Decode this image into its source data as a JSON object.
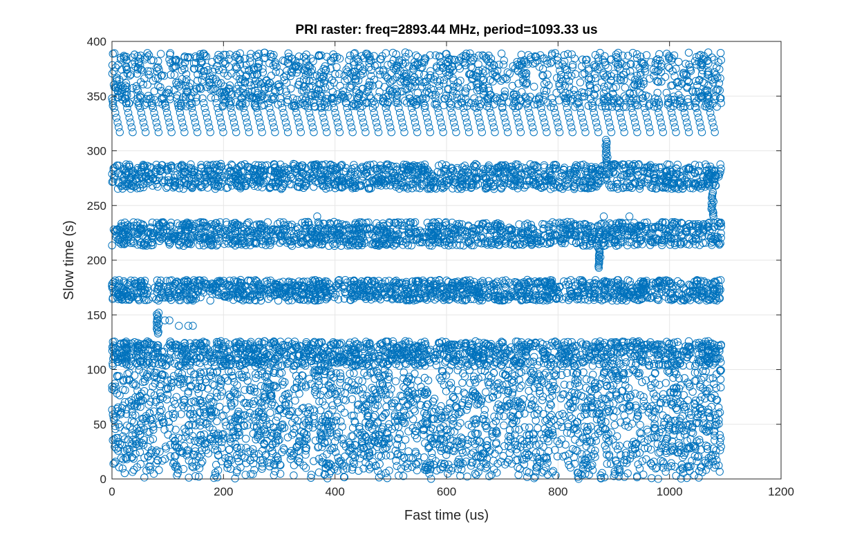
{
  "chart_data": {
    "type": "scatter",
    "title": "PRI raster: freq=2893.44 MHz, period=1093.33 us",
    "xlabel": "Fast time (us)",
    "ylabel": "Slow time (s)",
    "xlim": [
      0,
      1200
    ],
    "ylim": [
      0,
      400
    ],
    "xticks": [
      0,
      200,
      400,
      600,
      800,
      1000,
      1200
    ],
    "yticks": [
      0,
      50,
      100,
      150,
      200,
      250,
      300,
      350,
      400
    ],
    "grid": true,
    "marker": "circle-open",
    "color": "#0072BD",
    "bands": [
      {
        "y_min": 0,
        "y_max": 8,
        "x_min": 0,
        "x_max": 1093,
        "density": "sparse"
      },
      {
        "y_min": 8,
        "y_max": 100,
        "x_min": 0,
        "x_max": 1093,
        "density": "medium"
      },
      {
        "y_min": 103,
        "y_max": 126,
        "x_min": 0,
        "x_max": 1093,
        "density": "dense"
      },
      {
        "y_min": 163,
        "y_max": 182,
        "x_min": 0,
        "x_max": 1093,
        "density": "dense"
      },
      {
        "y_min": 213,
        "y_max": 235,
        "x_min": 0,
        "x_max": 1093,
        "density": "dense"
      },
      {
        "y_min": 265,
        "y_max": 288,
        "x_min": 0,
        "x_max": 1093,
        "density": "dense"
      },
      {
        "y_min": 340,
        "y_max": 390,
        "x_min": 0,
        "x_max": 1093,
        "density": "dense"
      }
    ],
    "chirp_segments": {
      "x_start": 0,
      "x_step": 23.2,
      "count": 48,
      "x_span": 14,
      "y_top": 348,
      "y_bottom": 317
    },
    "vertical_tracks": [
      {
        "x": 82,
        "y_min": 133,
        "y_max": 152
      },
      {
        "x": 874,
        "y_min": 193,
        "y_max": 211
      },
      {
        "x": 887,
        "y_min": 287,
        "y_max": 310
      },
      {
        "x": 1077,
        "y_min": 240,
        "y_max": 262
      }
    ],
    "outliers": [
      {
        "x": 95,
        "y": 145
      },
      {
        "x": 103,
        "y": 145
      },
      {
        "x": 120,
        "y": 140
      },
      {
        "x": 137,
        "y": 140
      },
      {
        "x": 145,
        "y": 140
      },
      {
        "x": 368,
        "y": 240
      },
      {
        "x": 882,
        "y": 240
      },
      {
        "x": 928,
        "y": 240
      }
    ]
  }
}
